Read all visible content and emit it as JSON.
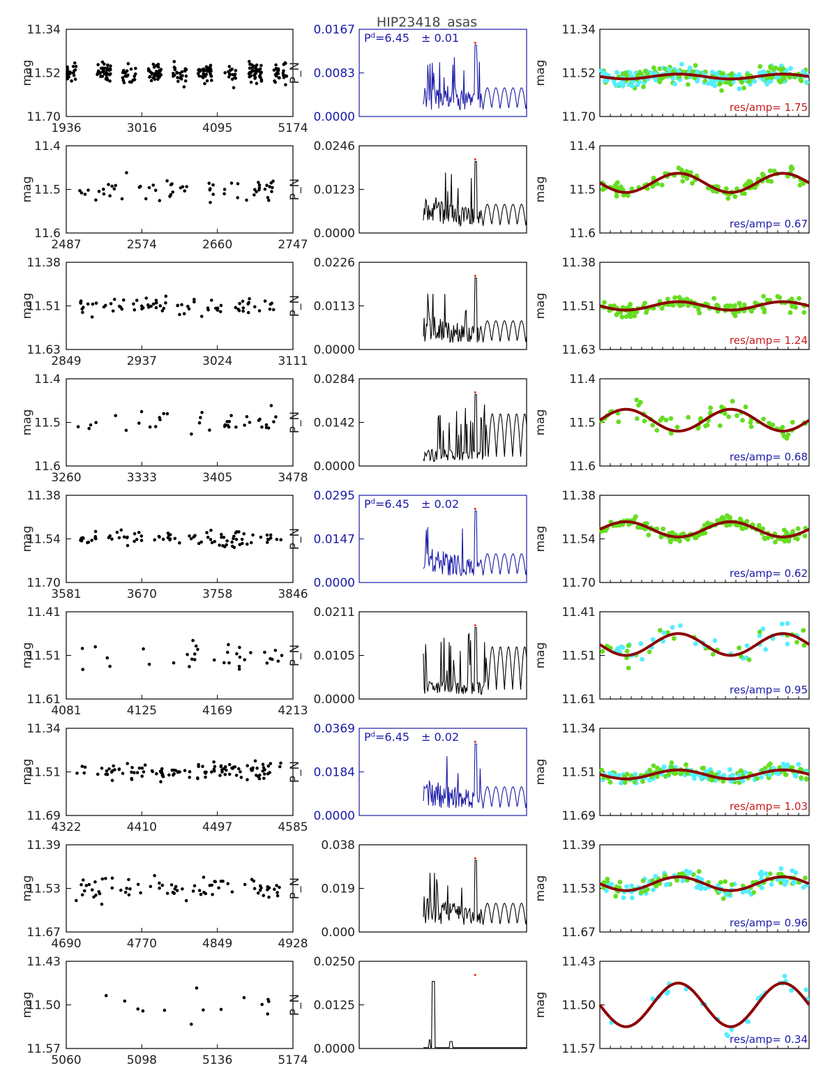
{
  "chart_data": {
    "title": "HIP23418_asas",
    "type": "scatter",
    "ylabel_lc": "mag",
    "ylabel_pg": "P_N",
    "phase_label": "res/amp=",
    "period_prefix": "P",
    "colors": {
      "axis": "#000000",
      "blue": "#1a1aa8",
      "red": "#c41a1a",
      "dark_red": "#8b0000",
      "green": "#66dd22",
      "cyan": "#55eeff",
      "marker": "#e03010"
    },
    "rows": [
      {
        "lc_x_ticks": [
          "1936",
          "3016",
          "4095",
          "5174"
        ],
        "lc_y_ticks": [
          "11.34",
          "11.52",
          "11.70"
        ],
        "lc_ylim": [
          11.34,
          11.7
        ],
        "lc_n": 260,
        "lc_spread": 0.055,
        "pg_y_ticks": [
          "0.0167",
          "0.0083",
          "0.0000"
        ],
        "pg_peak": 0.0167,
        "pg_blue": true,
        "pg_mode": "dense",
        "period_value": "6.45",
        "period_error": "± 0.01",
        "ph_y_ticks": [
          "11.34",
          "11.52",
          "11.70"
        ],
        "ph_mean": 11.535,
        "ph_amp": 0.01,
        "ph_phase": 0.25,
        "ph_colors": "gc",
        "ph_n": 300,
        "ph_spread": 0.055,
        "res_amp": "1.75",
        "res_color": "red"
      },
      {
        "lc_x_ticks": [
          "2487",
          "2574",
          "2660",
          "2747"
        ],
        "lc_y_ticks": [
          "11.4",
          "11.5",
          "11.6"
        ],
        "lc_ylim": [
          11.4,
          11.6
        ],
        "lc_n": 60,
        "lc_spread": 0.035,
        "pg_y_ticks": [
          "0.0246",
          "0.0123",
          "0.0000"
        ],
        "pg_peak": 0.0246,
        "pg_blue": false,
        "pg_mode": "dense",
        "period_value": "",
        "period_error": "",
        "ph_y_ticks": [
          "11.4",
          "11.5",
          "11.6"
        ],
        "ph_mean": 11.485,
        "ph_amp": 0.022,
        "ph_phase": 0.25,
        "ph_colors": "g",
        "ph_n": 110,
        "ph_spread": 0.03,
        "res_amp": "0.67",
        "res_color": "blue"
      },
      {
        "lc_x_ticks": [
          "2849",
          "2937",
          "3024",
          "3111"
        ],
        "lc_y_ticks": [
          "11.38",
          "11.51",
          "11.63"
        ],
        "lc_ylim": [
          11.38,
          11.63
        ],
        "lc_n": 75,
        "lc_spread": 0.035,
        "pg_y_ticks": [
          "0.0226",
          "0.0113",
          "0.0000"
        ],
        "pg_peak": 0.0226,
        "pg_blue": false,
        "pg_mode": "dense",
        "period_value": "",
        "period_error": "",
        "ph_y_ticks": [
          "11.38",
          "11.51",
          "11.63"
        ],
        "ph_mean": 11.505,
        "ph_amp": 0.012,
        "ph_phase": 0.25,
        "ph_colors": "g",
        "ph_n": 130,
        "ph_spread": 0.035,
        "res_amp": "1.24",
        "res_color": "red"
      },
      {
        "lc_x_ticks": [
          "3260",
          "3333",
          "3405",
          "3478"
        ],
        "lc_y_ticks": [
          "11.4",
          "11.5",
          "11.6"
        ],
        "lc_ylim": [
          11.4,
          11.6
        ],
        "lc_n": 40,
        "lc_spread": 0.04,
        "pg_y_ticks": [
          "0.0284",
          "0.0142",
          "0.0000"
        ],
        "pg_peak": 0.0284,
        "pg_blue": false,
        "pg_mode": "spiky",
        "period_value": "",
        "period_error": "",
        "ph_y_ticks": [
          "11.4",
          "11.5",
          "11.6"
        ],
        "ph_mean": 11.495,
        "ph_amp": 0.025,
        "ph_phase": 0.75,
        "ph_colors": "g",
        "ph_n": 70,
        "ph_spread": 0.04,
        "res_amp": "0.68",
        "res_color": "blue"
      },
      {
        "lc_x_ticks": [
          "3581",
          "3670",
          "3758",
          "3846"
        ],
        "lc_y_ticks": [
          "11.38",
          "11.54",
          "11.70"
        ],
        "lc_ylim": [
          11.38,
          11.7
        ],
        "lc_n": 85,
        "lc_spread": 0.035,
        "pg_y_ticks": [
          "0.0295",
          "0.0147",
          "0.0000"
        ],
        "pg_peak": 0.0295,
        "pg_blue": true,
        "pg_mode": "dense",
        "period_value": "6.45",
        "period_error": "± 0.02",
        "ph_y_ticks": [
          "11.38",
          "11.54",
          "11.70"
        ],
        "ph_mean": 11.505,
        "ph_amp": 0.028,
        "ph_phase": 0.75,
        "ph_colors": "g",
        "ph_n": 160,
        "ph_spread": 0.035,
        "res_amp": "0.62",
        "res_color": "blue"
      },
      {
        "lc_x_ticks": [
          "4081",
          "4125",
          "4169",
          "4213"
        ],
        "lc_y_ticks": [
          "11.41",
          "11.51",
          "11.61"
        ],
        "lc_ylim": [
          11.41,
          11.61
        ],
        "lc_n": 35,
        "lc_spread": 0.05,
        "pg_y_ticks": [
          "0.0211",
          "0.0105",
          "0.0000"
        ],
        "pg_peak": 0.0211,
        "pg_blue": false,
        "pg_mode": "spiky",
        "period_value": "",
        "period_error": "",
        "ph_y_ticks": [
          "11.41",
          "11.51",
          "11.61"
        ],
        "ph_mean": 11.485,
        "ph_amp": 0.025,
        "ph_phase": 0.25,
        "ph_colors": "gc",
        "ph_n": 65,
        "ph_spread": 0.045,
        "res_amp": "0.95",
        "res_color": "blue"
      },
      {
        "lc_x_ticks": [
          "4322",
          "4410",
          "4497",
          "4585"
        ],
        "lc_y_ticks": [
          "11.34",
          "11.51",
          "11.69"
        ],
        "lc_ylim": [
          11.34,
          11.69
        ],
        "lc_n": 110,
        "lc_spread": 0.045,
        "pg_y_ticks": [
          "0.0369",
          "0.0184",
          "0.0000"
        ],
        "pg_peak": 0.0369,
        "pg_blue": true,
        "pg_mode": "dense",
        "period_value": "6.45",
        "period_error": "± 0.02",
        "ph_y_ticks": [
          "11.34",
          "11.51",
          "11.69"
        ],
        "ph_mean": 11.525,
        "ph_amp": 0.018,
        "ph_phase": 0.25,
        "ph_colors": "gc",
        "ph_n": 210,
        "ph_spread": 0.045,
        "res_amp": "1.03",
        "res_color": "red"
      },
      {
        "lc_x_ticks": [
          "4690",
          "4770",
          "4849",
          "4928"
        ],
        "lc_y_ticks": [
          "11.39",
          "11.53",
          "11.67"
        ],
        "lc_ylim": [
          11.39,
          11.67
        ],
        "lc_n": 75,
        "lc_spread": 0.045,
        "pg_y_ticks": [
          "0.038",
          "0.019",
          "0.000"
        ],
        "pg_peak": 0.038,
        "pg_blue": false,
        "pg_mode": "dense",
        "period_value": "",
        "period_error": "",
        "ph_y_ticks": [
          "11.39",
          "11.53",
          "11.67"
        ],
        "ph_mean": 11.515,
        "ph_amp": 0.022,
        "ph_phase": 0.25,
        "ph_colors": "gc",
        "ph_n": 150,
        "ph_spread": 0.045,
        "res_amp": "0.96",
        "res_color": "blue"
      },
      {
        "lc_x_ticks": [
          "5060",
          "5098",
          "5136",
          "5174"
        ],
        "lc_y_ticks": [
          "11.43",
          "11.50",
          "11.57"
        ],
        "lc_ylim": [
          11.43,
          11.57
        ],
        "lc_n": 14,
        "lc_spread": 0.04,
        "pg_y_ticks": [
          "0.0250",
          "0.0125",
          "0.0000"
        ],
        "pg_peak": 0.025,
        "pg_blue": false,
        "pg_mode": "sparse",
        "period_value": "",
        "period_error": "",
        "ph_y_ticks": [
          "11.43",
          "11.50",
          "11.57"
        ],
        "ph_mean": 11.5,
        "ph_amp": 0.035,
        "ph_phase": 0.25,
        "ph_colors": "c",
        "ph_n": 26,
        "ph_spread": 0.03,
        "res_amp": "0.34",
        "res_color": "blue"
      }
    ]
  }
}
